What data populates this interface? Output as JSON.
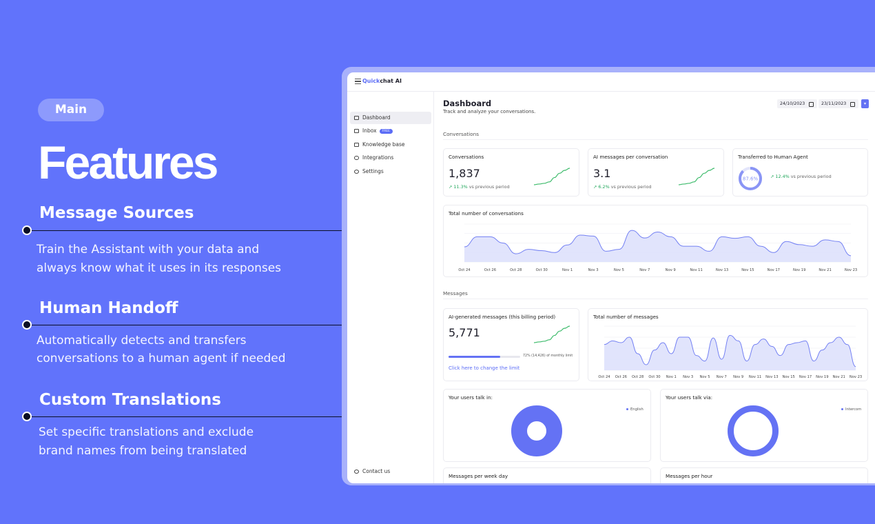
{
  "promo": {
    "badge": "Main",
    "title": "Features",
    "features": [
      {
        "title": "Message Sources",
        "line1": "Train the Assistant with your data and",
        "line2": "always know what it uses in its responses"
      },
      {
        "title": "Human Handoff",
        "line1": "Automatically detects and transfers",
        "line2": "conversations to a human agent if needed"
      },
      {
        "title": "Custom Translations",
        "line1": "Set specific translations and exclude",
        "line2": "brand names from being translated"
      }
    ]
  },
  "app": {
    "logo_accent": "Quick",
    "logo_rest": "chat AI",
    "nav": [
      {
        "label": "Dashboard",
        "icon": "home-icon",
        "active": true
      },
      {
        "label": "Inbox",
        "icon": "inbox-icon",
        "badge": "FREE"
      },
      {
        "label": "Knowledge base",
        "icon": "book-icon"
      },
      {
        "label": "Integrations",
        "icon": "link-icon"
      },
      {
        "label": "Settings",
        "icon": "gear-icon"
      }
    ],
    "contact": "Contact us",
    "page_title": "Dashboard",
    "page_subtitle": "Track and analyze your conversations.",
    "date_from": "24/10/2023",
    "date_to": "23/11/2023",
    "sections": {
      "conversations": "Conversations",
      "messages": "Messages"
    },
    "cards": {
      "conversations": {
        "title": "Conversations",
        "value": "1,837",
        "change": "11.3%",
        "suffix": "vs previous period"
      },
      "ai_per_conv": {
        "title": "AI messages per conversation",
        "value": "3.1",
        "change": "6.2%",
        "suffix": "vs previous period"
      },
      "transferred": {
        "title": "Transferred to Human Agent",
        "ring": "87.6%",
        "change": "12.4%",
        "suffix": "vs previous period"
      },
      "total_conv": {
        "title": "Total number of conversations"
      },
      "ai_generated": {
        "title": "AI-generated messages (this billing period)",
        "value": "5,771",
        "limit_text": "72% (14,426) of monthly limit",
        "link": "Click here to change the limit"
      },
      "total_msgs": {
        "title": "Total number of messages"
      },
      "talk_in": {
        "title": "Your users talk in:",
        "legend": "English"
      },
      "talk_via": {
        "title": "Your users talk via:",
        "legend": "Intercom"
      },
      "week_day": {
        "title": "Messages per week day"
      },
      "per_hour": {
        "title": "Messages per hour"
      }
    },
    "accent": "#6472f4",
    "positive": "#1fa65a"
  },
  "chart_data": [
    {
      "type": "area",
      "title": "Total number of conversations",
      "categories": [
        "Oct 24",
        "Oct 26",
        "Oct 28",
        "Oct 30",
        "Nov 1",
        "Nov 3",
        "Nov 5",
        "Nov 7",
        "Nov 9",
        "Nov 11",
        "Nov 13",
        "Nov 15",
        "Nov 17",
        "Nov 19",
        "Nov 21",
        "Nov 23"
      ],
      "x": [
        "Oct 24",
        "Oct 25",
        "Oct 26",
        "Oct 27",
        "Oct 28",
        "Oct 29",
        "Oct 30",
        "Oct 31",
        "Nov 1",
        "Nov 2",
        "Nov 3",
        "Nov 4",
        "Nov 5",
        "Nov 6",
        "Nov 7",
        "Nov 8",
        "Nov 9",
        "Nov 10",
        "Nov 11",
        "Nov 12",
        "Nov 13",
        "Nov 14",
        "Nov 15",
        "Nov 16",
        "Nov 17",
        "Nov 18",
        "Nov 19",
        "Nov 20",
        "Nov 21",
        "Nov 22",
        "Nov 23"
      ],
      "values": [
        48,
        80,
        80,
        60,
        26,
        40,
        36,
        30,
        54,
        85,
        82,
        34,
        40,
        100,
        76,
        95,
        80,
        50,
        50,
        34,
        80,
        75,
        80,
        50,
        30,
        65,
        55,
        50,
        70,
        65,
        20
      ],
      "ylim": [
        0,
        120
      ],
      "grid": true
    },
    {
      "type": "area",
      "title": "Total number of messages",
      "categories": [
        "Oct 24",
        "Oct 26",
        "Oct 28",
        "Oct 30",
        "Nov 1",
        "Nov 3",
        "Nov 5",
        "Nov 7",
        "Nov 9",
        "Nov 11",
        "Nov 13",
        "Nov 15",
        "Nov 17",
        "Nov 19",
        "Nov 21",
        "Nov 23"
      ],
      "x": [
        "Oct 24",
        "Oct 25",
        "Oct 26",
        "Oct 27",
        "Oct 28",
        "Oct 29",
        "Oct 30",
        "Oct 31",
        "Nov 1",
        "Nov 2",
        "Nov 3",
        "Nov 4",
        "Nov 5",
        "Nov 6",
        "Nov 7",
        "Nov 8",
        "Nov 9",
        "Nov 10",
        "Nov 11",
        "Nov 12",
        "Nov 13",
        "Nov 14",
        "Nov 15",
        "Nov 16",
        "Nov 17",
        "Nov 18",
        "Nov 19",
        "Nov 20",
        "Nov 21",
        "Nov 22",
        "Nov 23"
      ],
      "values": [
        70,
        80,
        75,
        90,
        45,
        15,
        55,
        75,
        45,
        90,
        90,
        40,
        25,
        88,
        30,
        95,
        80,
        25,
        70,
        85,
        65,
        40,
        70,
        75,
        80,
        25,
        55,
        75,
        90,
        70,
        10
      ],
      "ylim": [
        0,
        120
      ],
      "grid": true
    },
    {
      "type": "line",
      "title": "Conversations",
      "values": [
        10,
        12,
        14,
        18,
        30,
        42,
        50,
        56
      ]
    },
    {
      "type": "line",
      "title": "AI messages per conversation",
      "values": [
        10,
        12,
        14,
        18,
        30,
        42,
        50,
        56
      ]
    },
    {
      "type": "line",
      "title": "AI-generated messages (this billing period)",
      "values": [
        10,
        12,
        14,
        18,
        30,
        42,
        50,
        56
      ]
    },
    {
      "type": "pie",
      "title": "Your users talk in:",
      "labels": [
        "English"
      ],
      "values": [
        100
      ]
    },
    {
      "type": "pie",
      "title": "Your users talk via:",
      "labels": [
        "Intercom"
      ],
      "values": [
        100
      ]
    }
  ],
  "progress": {
    "ai_limit_fraction": 0.72,
    "human_transfer_fraction": 0.876
  }
}
